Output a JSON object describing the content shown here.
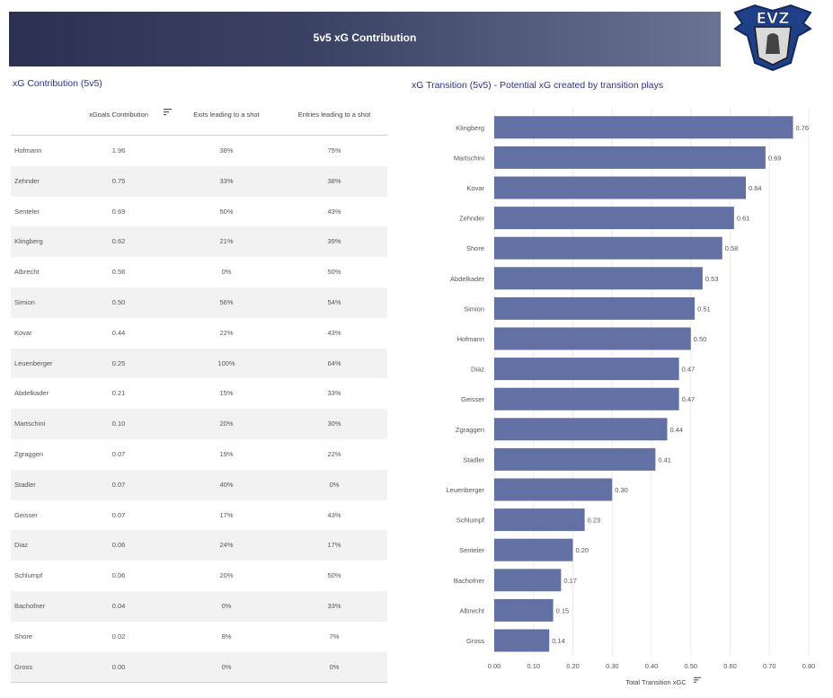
{
  "header": {
    "title": "5v5 xG Contribution",
    "logo_text": "EVZ"
  },
  "table": {
    "title": "xG Contribution (5v5)",
    "columns": [
      "xGoals Contribution",
      "Exits leading to a shot",
      "Entries leading to a shot"
    ],
    "rows": [
      [
        "Hofmann",
        "1.96",
        "38%",
        "75%"
      ],
      [
        "Zehnder",
        "0.75",
        "33%",
        "38%"
      ],
      [
        "Senteler",
        "0.69",
        "50%",
        "43%"
      ],
      [
        "Klingberg",
        "0.62",
        "21%",
        "39%"
      ],
      [
        "Albrecht",
        "0.56",
        "0%",
        "50%"
      ],
      [
        "Simion",
        "0.50",
        "56%",
        "54%"
      ],
      [
        "Kovar",
        "0.44",
        "22%",
        "43%"
      ],
      [
        "Leuenberger",
        "0.25",
        "100%",
        "64%"
      ],
      [
        "Abdelkader",
        "0.21",
        "15%",
        "33%"
      ],
      [
        "Martschini",
        "0.10",
        "20%",
        "30%"
      ],
      [
        "Zgraggen",
        "0.07",
        "19%",
        "22%"
      ],
      [
        "Stadler",
        "0.07",
        "40%",
        "0%"
      ],
      [
        "Geisser",
        "0.07",
        "17%",
        "43%"
      ],
      [
        "Diaz",
        "0.06",
        "24%",
        "17%"
      ],
      [
        "Schlumpf",
        "0.06",
        "20%",
        "50%"
      ],
      [
        "Bachofner",
        "0.04",
        "0%",
        "33%"
      ],
      [
        "Shore",
        "0.02",
        "8%",
        "7%"
      ],
      [
        "Gross",
        "0.00",
        "0%",
        "0%"
      ]
    ]
  },
  "chart_data": {
    "type": "bar",
    "orientation": "horizontal",
    "title": "xG Transition (5v5) - Potential xG created by transition plays",
    "xlabel": "Total Transition xGC",
    "xlim": [
      0,
      0.8
    ],
    "xticks": [
      "0.00",
      "0.10",
      "0.20",
      "0.30",
      "0.40",
      "0.50",
      "0.60",
      "0.70",
      "0.80"
    ],
    "categories": [
      "Klingberg",
      "Martschini",
      "Kovar",
      "Zehnder",
      "Shore",
      "Abdelkader",
      "Simion",
      "Hofmann",
      "Diaz",
      "Geisser",
      "Zgraggen",
      "Stadler",
      "Leuenberger",
      "Schlumpf",
      "Senteler",
      "Bachofner",
      "Albrecht",
      "Gross"
    ],
    "values": [
      0.76,
      0.69,
      0.64,
      0.61,
      0.58,
      0.53,
      0.51,
      0.5,
      0.47,
      0.47,
      0.44,
      0.41,
      0.3,
      0.23,
      0.2,
      0.17,
      0.15,
      0.14
    ],
    "labels": [
      "0.76",
      "0.69",
      "0.64",
      "0.61",
      "0.58",
      "0.53",
      "0.51",
      "0.50",
      "0.47",
      "0.47",
      "0.44",
      "0.41",
      "0.30",
      "0.23",
      "0.20",
      "0.17",
      "0.15",
      "0.14"
    ],
    "bar_color": "#6370a3",
    "grid": true
  }
}
